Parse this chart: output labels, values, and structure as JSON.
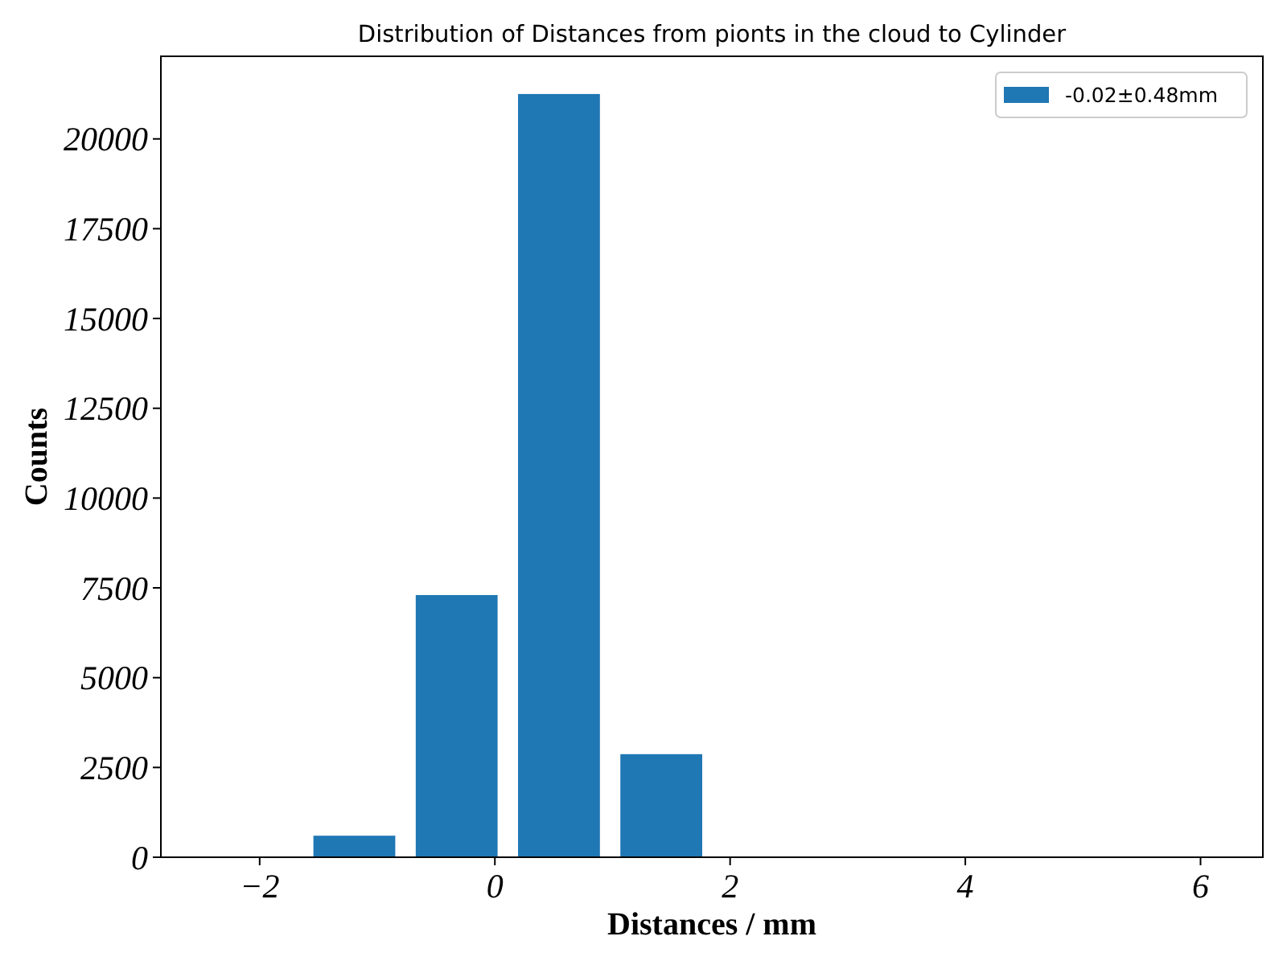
{
  "chart_data": {
    "type": "histogram",
    "title": "Distribution of Distances from pionts in the cloud to Cylinder",
    "xlabel": "Distances / mm",
    "ylabel": "Counts",
    "bins": [
      -2.5,
      -1.63,
      -0.76,
      0.11,
      0.98,
      1.85,
      2.72,
      3.59,
      4.46,
      5.33,
      6.2
    ],
    "series": [
      {
        "name": "-0.02±0.48mm",
        "color": "#1f77b4",
        "values": [
          0,
          600,
          7300,
          21250,
          2870,
          0,
          0,
          0,
          0,
          0
        ]
      }
    ],
    "xlim": [
      -2.84,
      6.53
    ],
    "ylim": [
      0,
      22300
    ],
    "xticks": [
      {
        "value": -2,
        "label": "−2"
      },
      0,
      2,
      4,
      6
    ],
    "yticks": [
      0,
      2500,
      5000,
      7500,
      10000,
      12500,
      15000,
      17500,
      20000
    ],
    "legend": "top right",
    "grid": false
  }
}
